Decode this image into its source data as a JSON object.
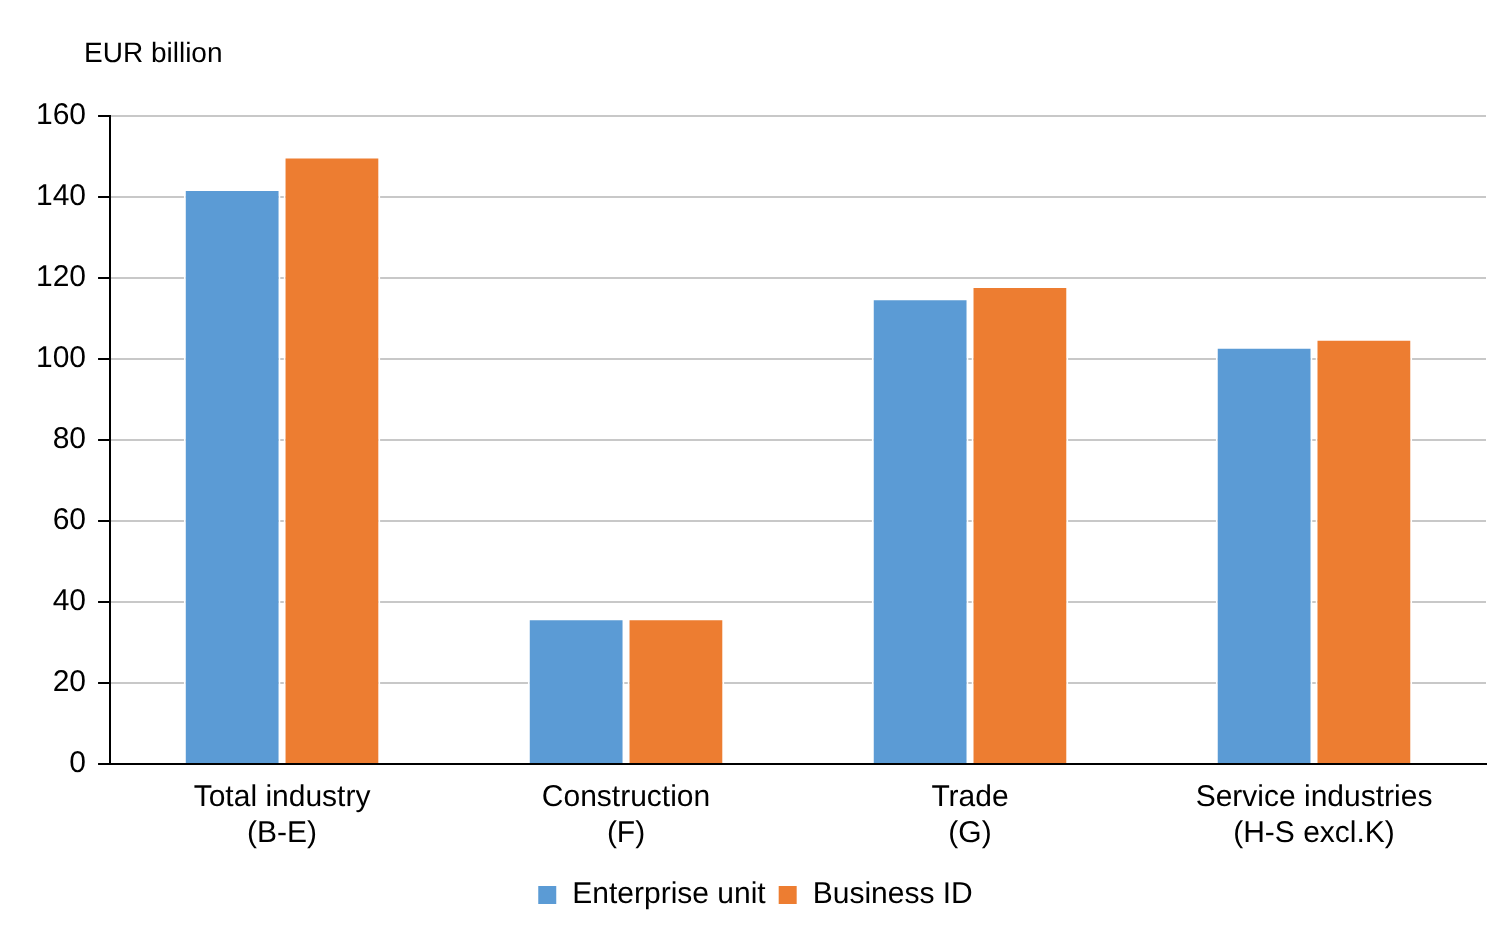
{
  "chart_data": {
    "type": "bar",
    "ylabel": "EUR billion",
    "categories": [
      "Total industry\n(B-E)",
      "Construction\n(F)",
      "Trade\n(G)",
      "Service industries\n(H-S excl.K)"
    ],
    "series": [
      {
        "name": "Enterprise unit",
        "color": "#5b9bd5",
        "values": [
          142,
          36,
          115,
          103
        ]
      },
      {
        "name": "Business ID",
        "color": "#ed7d31",
        "values": [
          150,
          36,
          118,
          105
        ]
      }
    ],
    "ylim": [
      0,
      160
    ],
    "yticks": [
      0,
      20,
      40,
      60,
      80,
      100,
      120,
      140,
      160
    ],
    "grid": "y",
    "legend": "bottom"
  }
}
